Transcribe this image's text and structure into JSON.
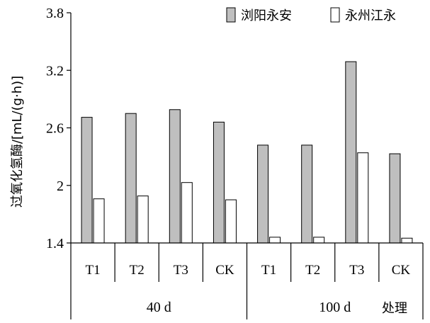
{
  "chart_data": {
    "type": "bar",
    "ylabel": "过氧化氢酶/[mL/(g·h)]",
    "xlabel": "处理",
    "ylim": [
      1.4,
      3.8
    ],
    "yticks": [
      "1.4",
      "2",
      "2.6",
      "3.2",
      "3.8"
    ],
    "ytick_values": [
      1.4,
      2.0,
      2.6,
      3.2,
      3.8
    ],
    "categories": [
      "T1",
      "T2",
      "T3",
      "CK",
      "T1",
      "T2",
      "T3",
      "CK"
    ],
    "groups": [
      {
        "label": "40 d",
        "count": 4
      },
      {
        "label": "100 d",
        "count": 4
      }
    ],
    "series": [
      {
        "name": "浏阳永安",
        "color": "#bfbfbf",
        "values": [
          2.71,
          2.75,
          2.79,
          2.66,
          2.42,
          2.42,
          3.29,
          2.33
        ]
      },
      {
        "name": "永州江永",
        "color": "#ffffff",
        "values": [
          1.86,
          1.89,
          2.03,
          1.85,
          1.46,
          1.46,
          2.34,
          1.45
        ]
      }
    ],
    "legend_position": "top-right",
    "grid": false
  }
}
